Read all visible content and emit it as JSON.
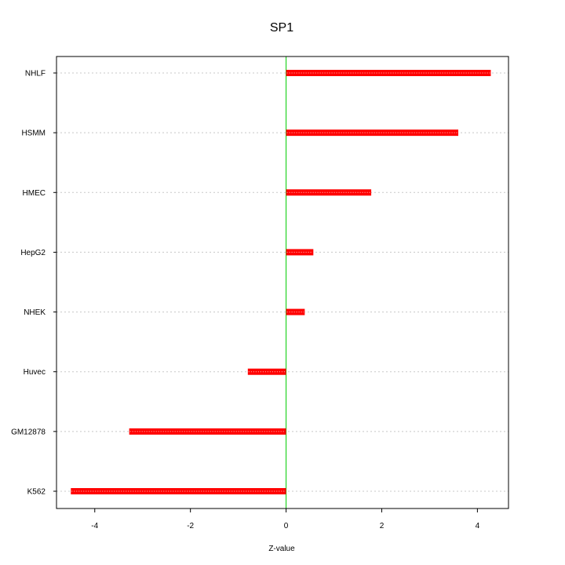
{
  "chart_data": {
    "type": "bar",
    "orientation": "horizontal",
    "title": "SP1",
    "xlabel": "Z-value",
    "ylabel": "",
    "categories": [
      "NHLF",
      "HSMM",
      "HMEC",
      "HepG2",
      "NHEK",
      "Huvec",
      "GM12878",
      "K562"
    ],
    "values": [
      4.28,
      3.6,
      1.78,
      0.57,
      0.39,
      -0.8,
      -3.28,
      -4.5
    ],
    "xlim": [
      -4.8,
      4.65
    ],
    "xticks": [
      -4,
      -2,
      0,
      2,
      4
    ],
    "grid": "horizontal-dotted",
    "reference_line": 0,
    "colors": {
      "bar": "#ff0000",
      "bar_center": "#ffd0d0",
      "reference_line": "#00cc00",
      "grid": "#c8c8c8",
      "frame": "#000000"
    }
  }
}
